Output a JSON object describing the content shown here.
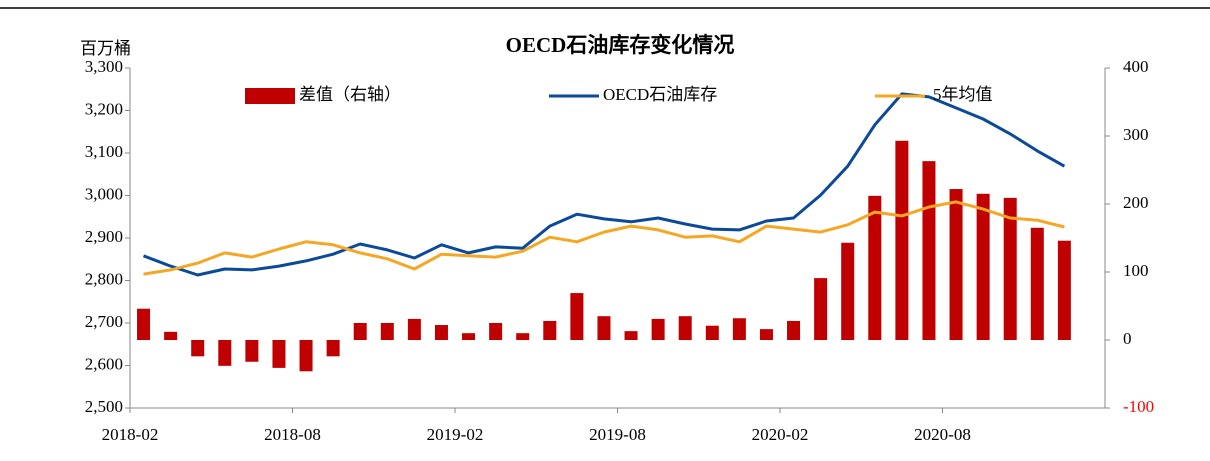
{
  "chart_data": {
    "type": "bar_line_dual",
    "title": "OECD石油库存变化情况",
    "ylabel": "百万桶",
    "categories": [
      "2018-02",
      null,
      null,
      null,
      null,
      null,
      "2018-08",
      null,
      null,
      null,
      null,
      null,
      "2019-02",
      null,
      null,
      null,
      null,
      null,
      "2019-08",
      null,
      null,
      null,
      null,
      null,
      "2020-02",
      null,
      null,
      null,
      null,
      null,
      "2020-08",
      null,
      null,
      null,
      null
    ],
    "series": [
      {
        "name": "差值（右轴）",
        "type": "bar",
        "axis": "y2",
        "color": "#c00000",
        "values": [
          46,
          12,
          -24,
          -38,
          -32,
          -41,
          -46,
          -24,
          25,
          25,
          31,
          22,
          10,
          25,
          10,
          28,
          69,
          35,
          13,
          31,
          35,
          21,
          32,
          16,
          28,
          91,
          143,
          212,
          293,
          263,
          222,
          215,
          209,
          165,
          146
        ]
      },
      {
        "name": "OECD石油库存",
        "type": "line",
        "color": "#0b4a9a",
        "values": [
          2858,
          2834,
          2813,
          2827,
          2825,
          2834,
          2846,
          2862,
          2886,
          2872,
          2853,
          2884,
          2865,
          2879,
          2876,
          2928,
          2956,
          2945,
          2938,
          2947,
          2933,
          2921,
          2919,
          2940,
          2947,
          3001,
          3069,
          3166,
          3239,
          3232,
          3206,
          3180,
          3145,
          3105,
          3069
        ]
      },
      {
        "name": "5年均值",
        "type": "line",
        "color": "#f5a623",
        "values": [
          2815,
          2825,
          2841,
          2865,
          2855,
          2874,
          2891,
          2884,
          2865,
          2851,
          2827,
          2862,
          2858,
          2855,
          2869,
          2902,
          2891,
          2914,
          2928,
          2919,
          2902,
          2905,
          2891,
          2928,
          2921,
          2914,
          2931,
          2961,
          2952,
          2973,
          2985,
          2968,
          2947,
          2942,
          2926
        ]
      }
    ],
    "ylim": [
      2500,
      3300
    ],
    "yticks": [
      {
        "value": 2500,
        "label": "2,500"
      },
      {
        "value": 2600,
        "label": "2,600"
      },
      {
        "value": 2700,
        "label": "2,700"
      },
      {
        "value": 2800,
        "label": "2,800"
      },
      {
        "value": 2900,
        "label": "2,900"
      },
      {
        "value": 3000,
        "label": "3,000"
      },
      {
        "value": 3100,
        "label": "3,100"
      },
      {
        "value": 3200,
        "label": "3,200"
      },
      {
        "value": 3300,
        "label": "3,300"
      }
    ],
    "y2lim": [
      -100,
      400
    ],
    "y2ticks": [
      -100,
      0,
      100,
      200,
      300,
      400
    ],
    "negative_tick_color": "#ff0000",
    "grid": false
  }
}
